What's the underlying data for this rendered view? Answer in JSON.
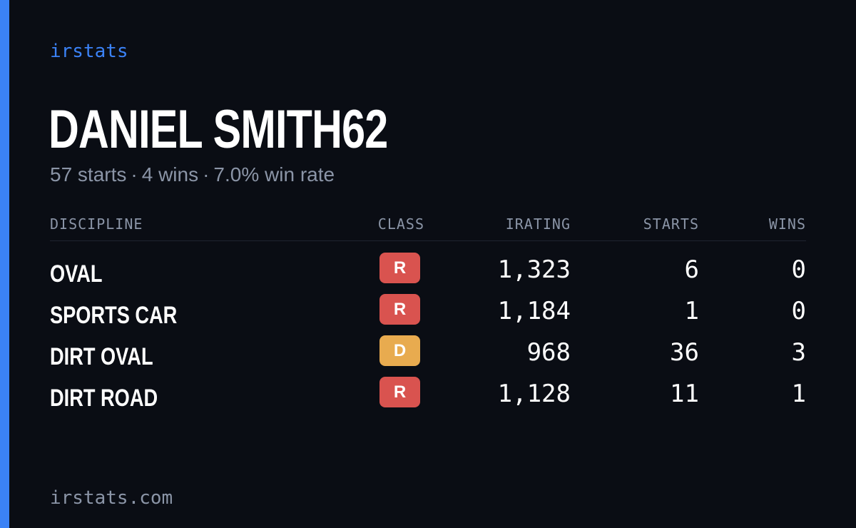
{
  "brand": "irstats",
  "driver": {
    "name": "DANIEL SMITH62"
  },
  "summary": {
    "starts": "57 starts",
    "wins": "4 wins",
    "win_rate": "7.0% win rate",
    "separator": "·"
  },
  "table": {
    "headers": {
      "discipline": "DISCIPLINE",
      "class": "CLASS",
      "irating": "IRATING",
      "starts": "STARTS",
      "wins": "WINS"
    },
    "rows": [
      {
        "discipline": "OVAL",
        "class": "R",
        "class_color": "#d9534f",
        "irating": "1,323",
        "starts": "6",
        "wins": "0"
      },
      {
        "discipline": "SPORTS CAR",
        "class": "R",
        "class_color": "#d9534f",
        "irating": "1,184",
        "starts": "1",
        "wins": "0"
      },
      {
        "discipline": "DIRT OVAL",
        "class": "D",
        "class_color": "#e8ab4f",
        "irating": "968",
        "starts": "36",
        "wins": "3"
      },
      {
        "discipline": "DIRT ROAD",
        "class": "R",
        "class_color": "#d9534f",
        "irating": "1,128",
        "starts": "11",
        "wins": "1"
      }
    ]
  },
  "footer": {
    "url": "irstats.com"
  },
  "colors": {
    "background": "#0a0d14",
    "accent": "#3b82f6",
    "muted": "#8b95a7",
    "text": "#ffffff"
  }
}
